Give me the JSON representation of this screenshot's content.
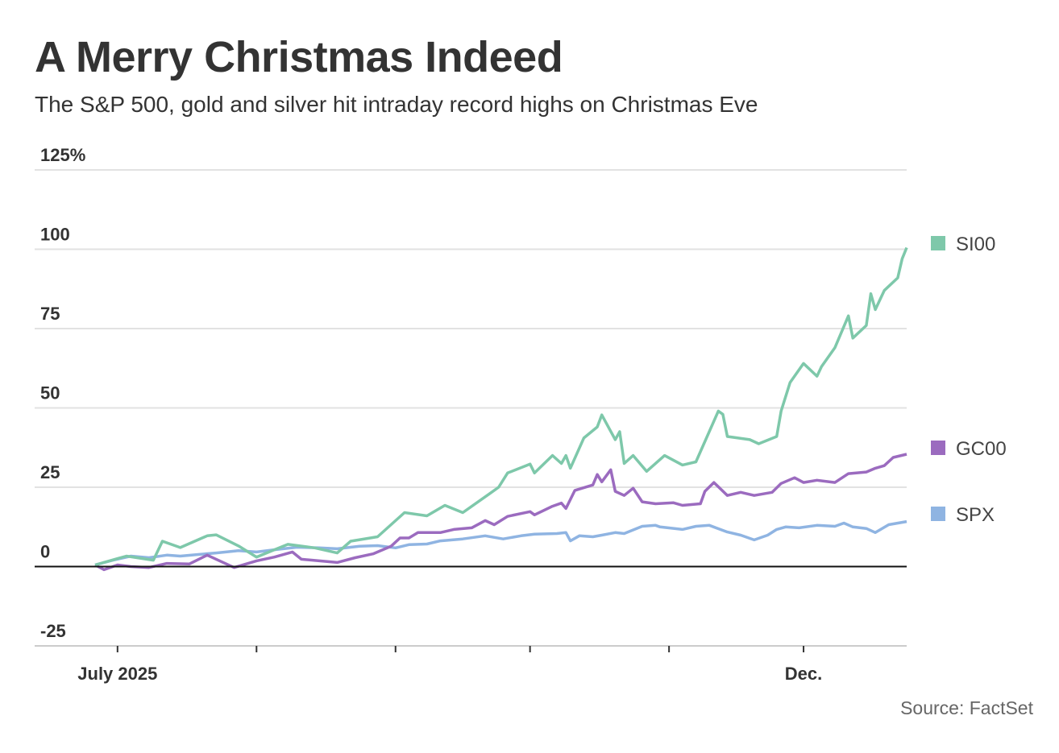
{
  "header": {
    "title": "A Merry Christmas Indeed",
    "subtitle": "The S&P 500, gold and silver hit intraday record highs on Christmas Eve"
  },
  "source": "Source: FactSet",
  "chart_data": {
    "type": "line",
    "title": "A Merry Christmas Indeed",
    "subtitle": "The S&P 500, gold and silver hit intraday record highs on Christmas Eve",
    "xlabel": "",
    "ylabel": "",
    "ylim": [
      -25,
      125
    ],
    "xlim": [
      "2025-06-26",
      "2025-12-24"
    ],
    "y_ticks": [
      {
        "value": 125,
        "label": "125%"
      },
      {
        "value": 100,
        "label": "100"
      },
      {
        "value": 75,
        "label": "75"
      },
      {
        "value": 50,
        "label": "50"
      },
      {
        "value": 25,
        "label": "25"
      },
      {
        "value": 0,
        "label": "0"
      },
      {
        "value": -25,
        "label": "-25"
      }
    ],
    "x_ticks": [
      {
        "date": "2025-07-01",
        "label": "July 2025"
      },
      {
        "date": "2025-08-01",
        "label": ""
      },
      {
        "date": "2025-09-01",
        "label": ""
      },
      {
        "date": "2025-10-01",
        "label": ""
      },
      {
        "date": "2025-11-01",
        "label": ""
      },
      {
        "date": "2025-12-01",
        "label": "Dec."
      }
    ],
    "grid": true,
    "legend": "right",
    "series": [
      {
        "name": "SI00",
        "color": "#7ec8aa",
        "points": [
          [
            "2025-06-26",
            0.5
          ],
          [
            "2025-07-01",
            2.5
          ],
          [
            "2025-07-03",
            3.3
          ],
          [
            "2025-07-09",
            2
          ],
          [
            "2025-07-11",
            8
          ],
          [
            "2025-07-15",
            6
          ],
          [
            "2025-07-21",
            9.7
          ],
          [
            "2025-07-23",
            10
          ],
          [
            "2025-07-28",
            6.5
          ],
          [
            "2025-08-01",
            3
          ],
          [
            "2025-08-05",
            5.3
          ],
          [
            "2025-08-08",
            7
          ],
          [
            "2025-08-14",
            5.9
          ],
          [
            "2025-08-19",
            4.3
          ],
          [
            "2025-08-22",
            8
          ],
          [
            "2025-08-28",
            9.4
          ],
          [
            "2025-09-03",
            17
          ],
          [
            "2025-09-08",
            16
          ],
          [
            "2025-09-12",
            19.3
          ],
          [
            "2025-09-16",
            17
          ],
          [
            "2025-09-22",
            23
          ],
          [
            "2025-09-24",
            25
          ],
          [
            "2025-09-26",
            29.5
          ],
          [
            "2025-10-01",
            32.3
          ],
          [
            "2025-10-02",
            29.5
          ],
          [
            "2025-10-06",
            35
          ],
          [
            "2025-10-08",
            32.5
          ],
          [
            "2025-10-09",
            35
          ],
          [
            "2025-10-10",
            31
          ],
          [
            "2025-10-13",
            40.5
          ],
          [
            "2025-10-16",
            44
          ],
          [
            "2025-10-17",
            47.8
          ],
          [
            "2025-10-20",
            40
          ],
          [
            "2025-10-21",
            42.5
          ],
          [
            "2025-10-22",
            32.5
          ],
          [
            "2025-10-24",
            35
          ],
          [
            "2025-10-27",
            30
          ],
          [
            "2025-10-31",
            35
          ],
          [
            "2025-11-04",
            32
          ],
          [
            "2025-11-07",
            33
          ],
          [
            "2025-11-12",
            49
          ],
          [
            "2025-11-13",
            48
          ],
          [
            "2025-11-14",
            41
          ],
          [
            "2025-11-19",
            40
          ],
          [
            "2025-11-21",
            38.7
          ],
          [
            "2025-11-25",
            41
          ],
          [
            "2025-11-26",
            49
          ],
          [
            "2025-11-28",
            58
          ],
          [
            "2025-12-01",
            64
          ],
          [
            "2025-12-04",
            60
          ],
          [
            "2025-12-05",
            63
          ],
          [
            "2025-12-08",
            69
          ],
          [
            "2025-12-11",
            79
          ],
          [
            "2025-12-12",
            72
          ],
          [
            "2025-12-15",
            76
          ],
          [
            "2025-12-16",
            86
          ],
          [
            "2025-12-17",
            81
          ],
          [
            "2025-12-19",
            87
          ],
          [
            "2025-12-22",
            91
          ],
          [
            "2025-12-23",
            97
          ],
          [
            "2025-12-24",
            100.5
          ]
        ]
      },
      {
        "name": "GC00",
        "color": "#9b6bbf",
        "points": [
          [
            "2025-06-26",
            0.5
          ],
          [
            "2025-06-28",
            -1
          ],
          [
            "2025-07-01",
            0.5
          ],
          [
            "2025-07-04",
            0
          ],
          [
            "2025-07-08",
            -0.3
          ],
          [
            "2025-07-12",
            1
          ],
          [
            "2025-07-17",
            0.8
          ],
          [
            "2025-07-21",
            3.6
          ],
          [
            "2025-07-27",
            -0.3
          ],
          [
            "2025-08-01",
            1.8
          ],
          [
            "2025-08-05",
            3
          ],
          [
            "2025-08-09",
            4.6
          ],
          [
            "2025-08-11",
            2.3
          ],
          [
            "2025-08-15",
            1.8
          ],
          [
            "2025-08-19",
            1.3
          ],
          [
            "2025-08-23",
            2.8
          ],
          [
            "2025-08-27",
            4
          ],
          [
            "2025-08-31",
            6.4
          ],
          [
            "2025-09-02",
            9
          ],
          [
            "2025-09-04",
            9
          ],
          [
            "2025-09-06",
            10.7
          ],
          [
            "2025-09-11",
            10.7
          ],
          [
            "2025-09-14",
            11.7
          ],
          [
            "2025-09-18",
            12.2
          ],
          [
            "2025-09-21",
            14.5
          ],
          [
            "2025-09-23",
            13.2
          ],
          [
            "2025-09-26",
            15.8
          ],
          [
            "2025-10-01",
            17.3
          ],
          [
            "2025-10-02",
            16.3
          ],
          [
            "2025-10-06",
            19
          ],
          [
            "2025-10-08",
            20
          ],
          [
            "2025-10-09",
            18.3
          ],
          [
            "2025-10-11",
            24
          ],
          [
            "2025-10-15",
            25.7
          ],
          [
            "2025-10-16",
            29
          ],
          [
            "2025-10-17",
            26.7
          ],
          [
            "2025-10-19",
            30.5
          ],
          [
            "2025-10-20",
            23.7
          ],
          [
            "2025-10-22",
            22.4
          ],
          [
            "2025-10-24",
            24.7
          ],
          [
            "2025-10-26",
            20.4
          ],
          [
            "2025-10-29",
            19.8
          ],
          [
            "2025-11-02",
            20.1
          ],
          [
            "2025-11-04",
            19.3
          ],
          [
            "2025-11-08",
            19.8
          ],
          [
            "2025-11-09",
            23.7
          ],
          [
            "2025-11-11",
            26.5
          ],
          [
            "2025-11-14",
            22.4
          ],
          [
            "2025-11-17",
            23.4
          ],
          [
            "2025-11-20",
            22.4
          ],
          [
            "2025-11-24",
            23.4
          ],
          [
            "2025-11-26",
            26.2
          ],
          [
            "2025-11-29",
            28
          ],
          [
            "2025-12-01",
            26.5
          ],
          [
            "2025-12-04",
            27.2
          ],
          [
            "2025-12-08",
            26.5
          ],
          [
            "2025-12-11",
            29.3
          ],
          [
            "2025-12-15",
            29.8
          ],
          [
            "2025-12-17",
            31
          ],
          [
            "2025-12-19",
            31.8
          ],
          [
            "2025-12-21",
            34.4
          ],
          [
            "2025-12-24",
            35.4
          ]
        ]
      },
      {
        "name": "SPX",
        "color": "#8fb4e2",
        "points": [
          [
            "2025-06-26",
            0.5
          ],
          [
            "2025-06-30",
            2
          ],
          [
            "2025-07-04",
            3.3
          ],
          [
            "2025-07-08",
            2.8
          ],
          [
            "2025-07-12",
            3.6
          ],
          [
            "2025-07-15",
            3.3
          ],
          [
            "2025-07-19",
            3.8
          ],
          [
            "2025-07-23",
            4.3
          ],
          [
            "2025-07-28",
            5
          ],
          [
            "2025-08-01",
            4.6
          ],
          [
            "2025-08-05",
            5.3
          ],
          [
            "2025-08-10",
            6.1
          ],
          [
            "2025-08-15",
            5.9
          ],
          [
            "2025-08-19",
            5.6
          ],
          [
            "2025-08-24",
            6.4
          ],
          [
            "2025-08-28",
            6.6
          ],
          [
            "2025-09-01",
            5.9
          ],
          [
            "2025-09-04",
            6.9
          ],
          [
            "2025-09-08",
            7.1
          ],
          [
            "2025-09-11",
            8.1
          ],
          [
            "2025-09-16",
            8.7
          ],
          [
            "2025-09-21",
            9.7
          ],
          [
            "2025-09-25",
            8.7
          ],
          [
            "2025-09-29",
            9.7
          ],
          [
            "2025-10-02",
            10.2
          ],
          [
            "2025-10-07",
            10.4
          ],
          [
            "2025-10-09",
            10.7
          ],
          [
            "2025-10-10",
            8.1
          ],
          [
            "2025-10-12",
            9.7
          ],
          [
            "2025-10-15",
            9.4
          ],
          [
            "2025-10-17",
            9.9
          ],
          [
            "2025-10-20",
            10.7
          ],
          [
            "2025-10-22",
            10.4
          ],
          [
            "2025-10-26",
            12.7
          ],
          [
            "2025-10-29",
            13
          ],
          [
            "2025-10-30",
            12.5
          ],
          [
            "2025-11-04",
            11.7
          ],
          [
            "2025-11-07",
            12.7
          ],
          [
            "2025-11-10",
            13
          ],
          [
            "2025-11-14",
            10.9
          ],
          [
            "2025-11-17",
            9.9
          ],
          [
            "2025-11-20",
            8.4
          ],
          [
            "2025-11-23",
            9.9
          ],
          [
            "2025-11-25",
            11.7
          ],
          [
            "2025-11-27",
            12.5
          ],
          [
            "2025-11-30",
            12.2
          ],
          [
            "2025-12-04",
            13
          ],
          [
            "2025-12-08",
            12.7
          ],
          [
            "2025-12-10",
            13.7
          ],
          [
            "2025-12-12",
            12.5
          ],
          [
            "2025-12-15",
            12
          ],
          [
            "2025-12-17",
            10.7
          ],
          [
            "2025-12-20",
            13.2
          ],
          [
            "2025-12-24",
            14.2
          ]
        ]
      }
    ]
  }
}
